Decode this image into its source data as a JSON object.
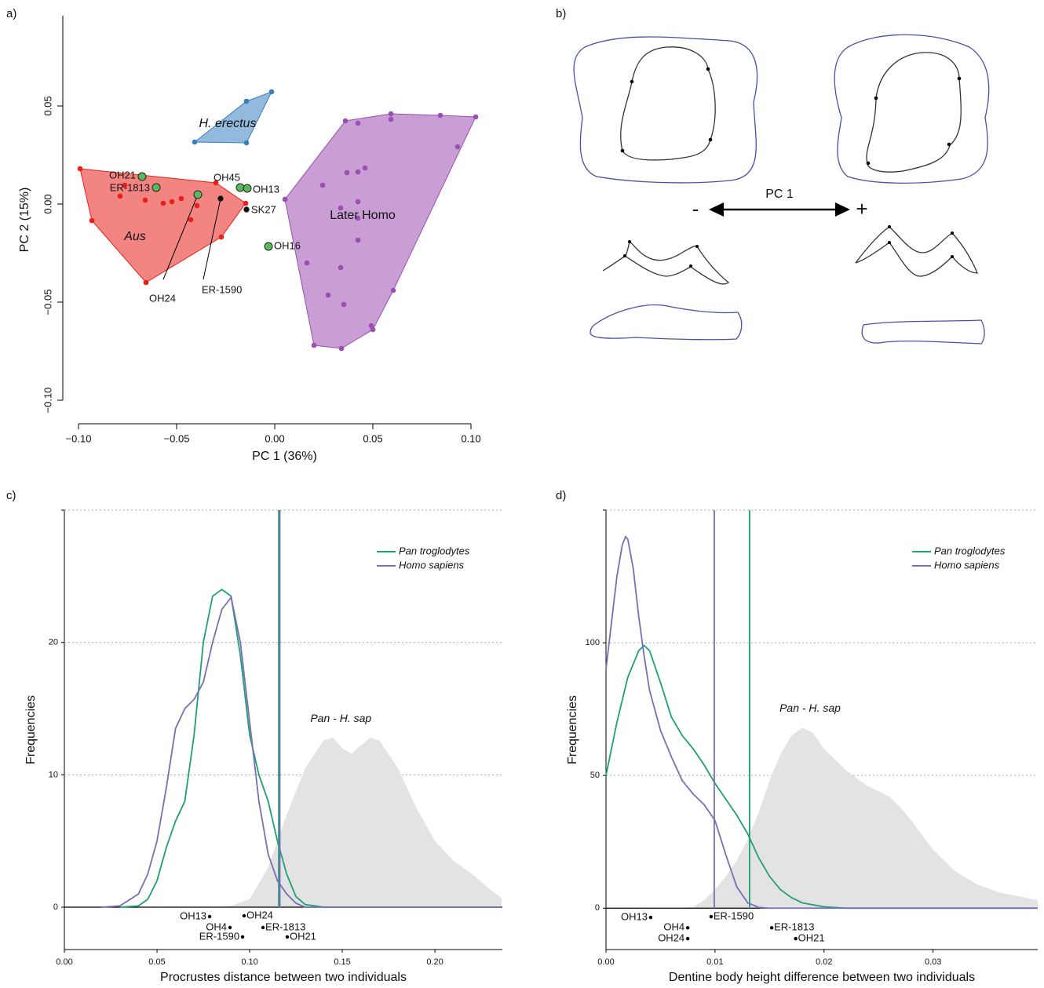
{
  "chart_data": [
    {
      "type": "scatter",
      "panel": "a)",
      "x_label": "PC 1 (36%)",
      "y_label": "PC 2 (15%)",
      "xlim": [
        -0.108,
        0.118
      ],
      "ylim": [
        -0.112,
        0.096
      ],
      "xticks": [
        {
          "value": -0.1,
          "label": "−0.10"
        },
        {
          "value": -0.05,
          "label": "−0.05"
        },
        {
          "value": 0,
          "label": "0.00"
        },
        0.05,
        {
          "value": 0.1,
          "label": "0.10"
        }
      ],
      "yticks": [
        {
          "value": -0.1,
          "label": "−0.10"
        },
        {
          "value": -0.05,
          "label": "−0.05"
        },
        {
          "value": 0,
          "label": "0.00"
        },
        0.05
      ],
      "hull": true,
      "series": [
        {
          "name": "Aus",
          "color": "#e8201c",
          "x": [
            -0.0992,
            -0.0932,
            -0.0788,
            -0.0764,
            -0.066,
            -0.0656,
            -0.0568,
            -0.0524,
            -0.0476,
            -0.0428,
            -0.0396,
            -0.03,
            -0.0272,
            -0.0148
          ],
          "values": [
            0.018,
            -0.0084,
            0.004,
            0.0096,
            0.002,
            -0.04,
            0.0004,
            0.0012,
            0.0028,
            -0.008,
            -0.0008,
            0.0108,
            -0.0168,
            0.0004
          ]
        },
        {
          "name": "H. erectus",
          "color": "#3a7fc0",
          "x": [
            -0.0408,
            -0.0144,
            -0.0016,
            -0.0144
          ],
          "values": [
            0.0316,
            0.0524,
            0.0572,
            0.0312
          ]
        },
        {
          "name": "Later Homo",
          "color": "#9b4fb0",
          "x": [
            0.0052,
            0.02,
            0.0244,
            0.0164,
            0.0272,
            0.0336,
            0.0336,
            0.034,
            0.036,
            0.0368,
            0.0352,
            0.0424,
            0.0424,
            0.046,
            0.0424,
            0.0424,
            0.0424,
            0.0492,
            0.05,
            0.0592,
            0.0592,
            0.0604,
            0.0844,
            0.0932,
            0.1024
          ],
          "values": [
            0.0024,
            -0.072,
            0.0096,
            -0.03,
            -0.0464,
            -0.0324,
            -0.002,
            -0.0736,
            0.0424,
            0.016,
            -0.0512,
            0.0412,
            0.0164,
            0.0184,
            0.0012,
            -0.0184,
            -0.0072,
            -0.062,
            -0.064,
            0.046,
            0.0432,
            -0.044,
            0.0452,
            0.0292,
            0.0444
          ]
        }
      ],
      "points": [
        {
          "label": "OH21",
          "x": -0.0676,
          "y": 0.014,
          "color": "#5cb85c"
        },
        {
          "label": "ER-1813",
          "x": -0.0604,
          "y": 0.0084,
          "color": "#5cb85c"
        },
        {
          "label": "OH24",
          "x": -0.0392,
          "y": 0.0048,
          "color": "#5cb85c"
        },
        {
          "label": "OH45",
          "x": -0.0176,
          "y": 0.0084,
          "color": "#5cb85c"
        },
        {
          "label": "OH13",
          "x": -0.014,
          "y": 0.008,
          "color": "#5cb85c"
        },
        {
          "label": "OH16",
          "x": -0.0032,
          "y": -0.0216,
          "color": "#5cb85c"
        },
        {
          "label": "ER-1590",
          "x": -0.0276,
          "y": 0.0028,
          "color": "#111111"
        },
        {
          "label": "SK27",
          "x": -0.0144,
          "y": -0.0028,
          "color": "#111111"
        }
      ]
    },
    {
      "type": "line",
      "panel": "c)",
      "x_label": "Procrustes distance between two individuals",
      "y_label": "Frequencies",
      "xlim": [
        0,
        0.2364
      ],
      "ylim": [
        -3.2,
        30
      ],
      "xticks": [
        {
          "value": 0,
          "label": "0.00"
        },
        0.05,
        {
          "value": 0.1,
          "label": "0.10"
        },
        0.15,
        {
          "value": 0.2,
          "label": "0.20"
        }
      ],
      "yticks": [
        0,
        10,
        20
      ],
      "grid": true,
      "legend": "top right",
      "area": {
        "label": "Pan - H. sap",
        "color": "#e3e3e3",
        "x": [
          0.08,
          0.09,
          0.1,
          0.11,
          0.12,
          0.13,
          0.14,
          0.145,
          0.15,
          0.155,
          0.16,
          0.165,
          0.17,
          0.18,
          0.19,
          0.2,
          0.21,
          0.22,
          0.23,
          0.236
        ],
        "values": [
          0,
          0.1,
          0.6,
          3,
          7,
          10.5,
          12.6,
          12.8,
          12,
          11.6,
          12.2,
          12.8,
          12.6,
          10.5,
          7.5,
          5,
          3.5,
          2.5,
          1.3,
          0.7
        ]
      },
      "series": [
        {
          "name": "Pan troglodytes",
          "color": "#1f9e77",
          "vline": 0.1157,
          "x": [
            0.03,
            0.04,
            0.045,
            0.05,
            0.055,
            0.06,
            0.065,
            0.07,
            0.075,
            0.08,
            0.085,
            0.09,
            0.095,
            0.1,
            0.105,
            0.11,
            0.115,
            0.12,
            0.125,
            0.13,
            0.14,
            0.236
          ],
          "values": [
            0,
            0.1,
            0.6,
            2,
            4.5,
            6.5,
            8,
            13,
            20,
            23.5,
            24,
            23.5,
            19,
            13,
            10,
            8,
            5,
            2.5,
            0.8,
            0.2,
            0,
            0
          ]
        },
        {
          "name": "Homo sapiens",
          "color": "#7570b3",
          "vline": 0.1163,
          "x": [
            0.02,
            0.03,
            0.04,
            0.045,
            0.05,
            0.055,
            0.06,
            0.065,
            0.07,
            0.075,
            0.08,
            0.085,
            0.09,
            0.095,
            0.1,
            0.105,
            0.11,
            0.115,
            0.12,
            0.125,
            0.13,
            0.236
          ],
          "values": [
            0,
            0.1,
            1,
            2.5,
            5,
            9,
            13.5,
            15,
            15.7,
            17,
            20,
            22.5,
            23.4,
            20,
            14,
            8,
            4,
            2,
            1,
            0.3,
            0,
            0
          ]
        }
      ],
      "points": [
        {
          "label": "OH13",
          "x": 0.0784,
          "y": -0.71
        },
        {
          "label": "OH4",
          "x": 0.0894,
          "y": -1.54
        },
        {
          "label": "ER-1590",
          "x": 0.0962,
          "y": -2.25
        },
        {
          "label": "OH24",
          "x": 0.097,
          "y": -0.65
        },
        {
          "label": "ER-1813",
          "x": 0.1072,
          "y": -1.54
        },
        {
          "label": "OH21",
          "x": 0.1203,
          "y": -2.25
        }
      ]
    },
    {
      "type": "line",
      "panel": "d)",
      "x_label": "Dentine body height difference between two individuals",
      "y_label": "Frequencies",
      "xlim": [
        0,
        0.0396
      ],
      "ylim": [
        -15.6,
        150
      ],
      "xticks": [
        {
          "value": 0,
          "label": "0.00"
        },
        0.01,
        0.02,
        0.03
      ],
      "yticks": [
        0,
        50,
        100
      ],
      "grid": true,
      "legend": "top right",
      "area": {
        "label": "Pan - H. sap",
        "color": "#e3e3e3",
        "x": [
          0.007,
          0.008,
          0.009,
          0.01,
          0.011,
          0.012,
          0.013,
          0.014,
          0.015,
          0.016,
          0.017,
          0.018,
          0.019,
          0.02,
          0.022,
          0.024,
          0.026,
          0.027,
          0.028,
          0.03,
          0.032,
          0.034,
          0.036,
          0.0396
        ],
        "values": [
          0,
          0.5,
          3,
          7,
          12,
          18,
          26,
          36,
          48,
          58,
          65,
          68,
          66,
          60,
          52,
          46,
          42,
          38,
          33,
          22,
          14,
          9,
          6,
          3
        ]
      },
      "series": [
        {
          "name": "Pan troglodytes",
          "color": "#1f9e77",
          "vline": 0.01317,
          "x": [
            0,
            0.001,
            0.002,
            0.003,
            0.0035,
            0.004,
            0.005,
            0.006,
            0.007,
            0.008,
            0.009,
            0.01,
            0.011,
            0.012,
            0.013,
            0.014,
            0.015,
            0.016,
            0.017,
            0.018,
            0.02,
            0.022,
            0.0396
          ],
          "values": [
            50,
            70,
            87,
            97,
            99,
            97,
            85,
            72,
            65,
            60,
            54,
            47,
            41,
            35,
            28,
            19,
            12,
            7,
            4,
            2,
            0.5,
            0,
            0
          ]
        },
        {
          "name": "Homo sapiens",
          "color": "#7570b3",
          "vline": 0.00993,
          "x": [
            0,
            0.001,
            0.0015,
            0.0018,
            0.002,
            0.0025,
            0.003,
            0.0035,
            0.004,
            0.005,
            0.006,
            0.007,
            0.008,
            0.009,
            0.01,
            0.011,
            0.012,
            0.013,
            0.014,
            0.015,
            0.0396
          ],
          "values": [
            90,
            125,
            137,
            140,
            139,
            128,
            110,
            95,
            82,
            67,
            57,
            48,
            43,
            39,
            33,
            20,
            8,
            2,
            0.3,
            0,
            0
          ]
        }
      ],
      "points": [
        {
          "label": "OH13",
          "x": 0.0041,
          "y": -3.5
        },
        {
          "label": "OH4",
          "x": 0.0075,
          "y": -7.4
        },
        {
          "label": "OH24",
          "x": 0.0075,
          "y": -11.5
        },
        {
          "label": "ER-1590",
          "x": 0.00964,
          "y": -3.2
        },
        {
          "label": "ER-1813",
          "x": 0.0152,
          "y": -7.4
        },
        {
          "label": "OH21",
          "x": 0.0174,
          "y": -11.5
        }
      ]
    }
  ],
  "diagram": {
    "panel": "b)",
    "axis_label": "PC 1",
    "minus": "-",
    "plus": "+"
  }
}
